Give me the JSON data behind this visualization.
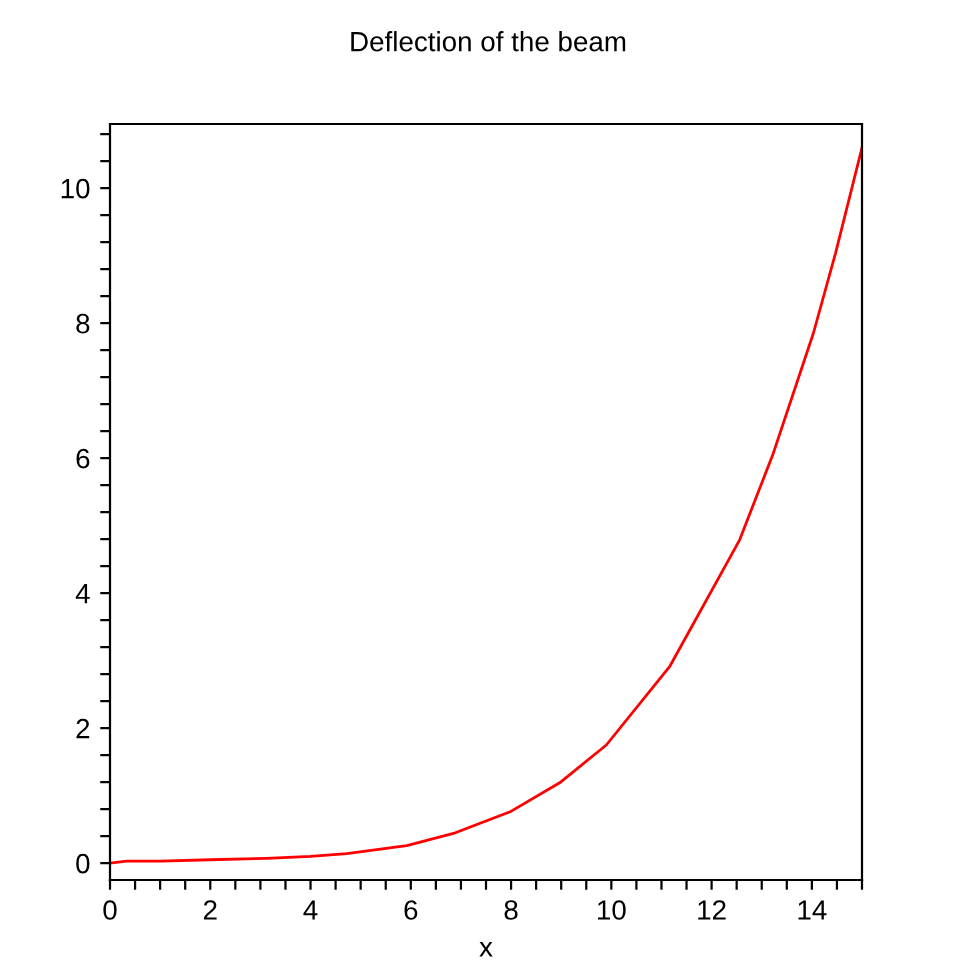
{
  "chart_data": {
    "type": "line",
    "title": "Deflection of the beam",
    "xlabel": "x",
    "x": [
      0,
      0.33,
      1,
      2,
      3.12,
      4,
      4.72,
      5.92,
      6.85,
      7.98,
      8.97,
      9.9,
      11.17,
      12.56,
      13.23,
      14.03,
      14.47,
      15
    ],
    "series": [
      {
        "color": "#ff0000",
        "values": [
          0,
          0.03,
          0.03,
          0.05,
          0.07,
          0.1,
          0.14,
          0.26,
          0.44,
          0.76,
          1.19,
          1.75,
          2.92,
          4.79,
          6.07,
          7.85,
          9.03,
          10.6
        ]
      }
    ],
    "xlim": [
      0,
      15
    ],
    "ylim": [
      -0.25,
      10.95
    ],
    "xticks": [
      0,
      {
        "value": 0.5,
        "label": null
      },
      {
        "value": 1,
        "label": null
      },
      {
        "value": 1.5,
        "label": null
      },
      2,
      {
        "value": 2.5,
        "label": null
      },
      {
        "value": 3,
        "label": null
      },
      {
        "value": 3.5,
        "label": null
      },
      4,
      {
        "value": 4.5,
        "label": null
      },
      {
        "value": 5,
        "label": null
      },
      {
        "value": 5.5,
        "label": null
      },
      6,
      {
        "value": 6.5,
        "label": null
      },
      {
        "value": 7,
        "label": null
      },
      {
        "value": 7.5,
        "label": null
      },
      8,
      {
        "value": 8.5,
        "label": null
      },
      {
        "value": 9,
        "label": null
      },
      {
        "value": 9.5,
        "label": null
      },
      10,
      {
        "value": 10.5,
        "label": null
      },
      {
        "value": 11,
        "label": null
      },
      {
        "value": 11.5,
        "label": null
      },
      12,
      {
        "value": 12.5,
        "label": null
      },
      {
        "value": 13,
        "label": null
      },
      {
        "value": 13.5,
        "label": null
      },
      14,
      {
        "value": 14.5,
        "label": null
      },
      {
        "value": 15,
        "label": null
      }
    ],
    "yticks": [
      0,
      {
        "value": 0.4,
        "label": null
      },
      {
        "value": 0.8,
        "label": null
      },
      {
        "value": 1.2,
        "label": null
      },
      {
        "value": 1.6,
        "label": null
      },
      2,
      {
        "value": 2.4,
        "label": null
      },
      {
        "value": 2.8,
        "label": null
      },
      {
        "value": 3.2,
        "label": null
      },
      {
        "value": 3.6,
        "label": null
      },
      4,
      {
        "value": 4.4,
        "label": null
      },
      {
        "value": 4.8,
        "label": null
      },
      {
        "value": 5.2,
        "label": null
      },
      {
        "value": 5.6,
        "label": null
      },
      6,
      {
        "value": 6.4,
        "label": null
      },
      {
        "value": 6.8,
        "label": null
      },
      {
        "value": 7.2,
        "label": null
      },
      {
        "value": 7.6,
        "label": null
      },
      8,
      {
        "value": 8.4,
        "label": null
      },
      {
        "value": 8.8,
        "label": null
      },
      {
        "value": 9.2,
        "label": null
      },
      {
        "value": 9.6,
        "label": null
      },
      10,
      {
        "value": 10.4,
        "label": null
      },
      {
        "value": 10.8,
        "label": null
      }
    ],
    "grid": false,
    "legend": false,
    "marker": "none",
    "line_style": "solid"
  }
}
